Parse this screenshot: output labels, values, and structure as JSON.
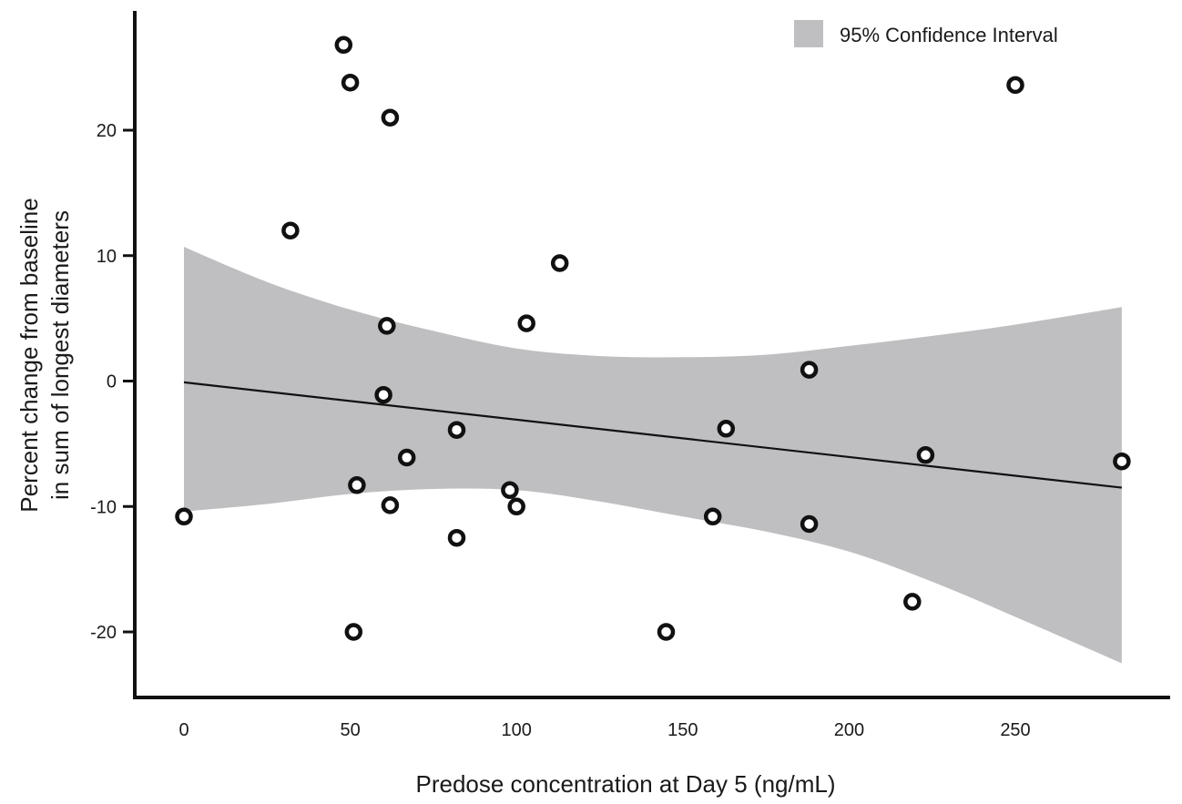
{
  "chart_data": {
    "type": "scatter",
    "title": "",
    "xlabel": "Predose concentration at Day 5 (ng/mL)",
    "ylabel_line1": "Percent change from baseline",
    "ylabel_line2": "in sum of longest diameters",
    "xlim": [
      -15,
      295
    ],
    "ylim": [
      -25,
      29
    ],
    "xticks": [
      0,
      50,
      100,
      150,
      200,
      250
    ],
    "xtick_labels": [
      "0",
      "50",
      "100",
      "150",
      "200",
      "250"
    ],
    "yticks": [
      -20,
      -10,
      0,
      10,
      20
    ],
    "ytick_labels": [
      "-20",
      "-10",
      "0",
      "10",
      "20"
    ],
    "grid": false,
    "legend": {
      "placement": "top-right",
      "entries": [
        {
          "label": "95% Confidence Interval",
          "color": "#bfbfc2"
        }
      ]
    },
    "points": [
      {
        "x": 0,
        "y": -10.8
      },
      {
        "x": 32,
        "y": 12
      },
      {
        "x": 48,
        "y": 26.8
      },
      {
        "x": 50,
        "y": 23.8
      },
      {
        "x": 51,
        "y": -20
      },
      {
        "x": 52,
        "y": -8.3
      },
      {
        "x": 60,
        "y": -1.1
      },
      {
        "x": 61,
        "y": 4.4
      },
      {
        "x": 62,
        "y": 21
      },
      {
        "x": 62,
        "y": -9.9
      },
      {
        "x": 67,
        "y": -6.1
      },
      {
        "x": 82,
        "y": -3.9
      },
      {
        "x": 82,
        "y": -12.5
      },
      {
        "x": 98,
        "y": -8.7
      },
      {
        "x": 100,
        "y": -10
      },
      {
        "x": 103,
        "y": 4.6
      },
      {
        "x": 113,
        "y": 9.4
      },
      {
        "x": 145,
        "y": -20
      },
      {
        "x": 159,
        "y": -10.8
      },
      {
        "x": 163,
        "y": -3.8
      },
      {
        "x": 188,
        "y": 0.9
      },
      {
        "x": 188,
        "y": -11.4
      },
      {
        "x": 219,
        "y": -17.6
      },
      {
        "x": 223,
        "y": -5.9
      },
      {
        "x": 250,
        "y": 23.6
      },
      {
        "x": 282,
        "y": -6.4
      }
    ],
    "regression_line": {
      "x": [
        0,
        282
      ],
      "y": [
        -0.1,
        -8.5
      ]
    },
    "confidence_band": {
      "x": [
        0,
        25,
        50,
        75,
        100,
        125,
        150,
        175,
        200,
        225,
        250,
        282
      ],
      "upper": [
        10.7,
        7.9,
        5.7,
        4.0,
        2.6,
        2.0,
        1.9,
        2.1,
        2.8,
        3.6,
        4.5,
        5.9
      ],
      "lower": [
        -10.4,
        -9.8,
        -9.0,
        -8.6,
        -8.7,
        -9.6,
        -10.8,
        -12.0,
        -13.6,
        -16.0,
        -18.8,
        -22.5
      ]
    },
    "colors": {
      "band": "#bfbfc2",
      "line": "#111111",
      "axis": "#111111",
      "marker_stroke": "#111111",
      "marker_fill": "#ffffff"
    }
  }
}
